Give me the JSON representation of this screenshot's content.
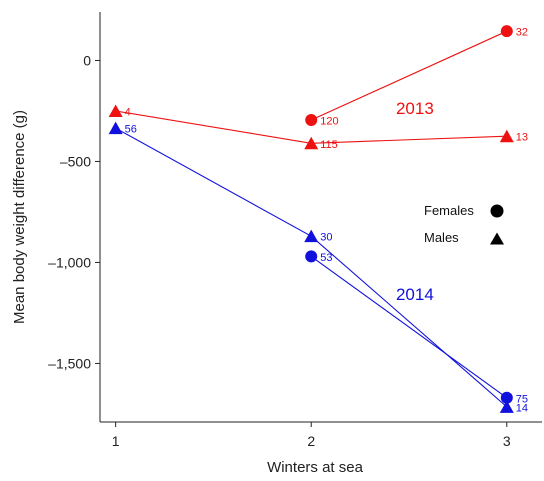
{
  "chart_data": {
    "type": "line",
    "xlabel": "Winters at sea",
    "ylabel": "Mean body weight difference (g)",
    "x_ticks": [
      1,
      2,
      3
    ],
    "x_tick_labels": [
      "1",
      "2",
      "3"
    ],
    "y_ticks": [
      0,
      -500,
      -1000,
      -1500
    ],
    "y_tick_labels": [
      "0",
      "–500",
      "–1,000",
      "–1,500"
    ],
    "xlim": [
      0.92,
      3.18
    ],
    "ylim": [
      -1790,
      240
    ],
    "group_labels": [
      {
        "text": "2013",
        "x": 2.53,
        "y": -265,
        "color": "#ee1111"
      },
      {
        "text": "2014",
        "x": 2.53,
        "y": -1185,
        "color": "#1111dd"
      }
    ],
    "legend": {
      "position": "right",
      "entries": [
        {
          "label": "Females",
          "marker": "circle"
        },
        {
          "label": "Males",
          "marker": "triangle"
        }
      ]
    },
    "series": [
      {
        "year": "2013",
        "sex": "Males",
        "marker": "triangle",
        "color": "#ee1111",
        "points": [
          {
            "x": 1,
            "y": -250,
            "n": "4"
          },
          {
            "x": 2,
            "y": -410,
            "n": "115"
          },
          {
            "x": 3,
            "y": -375,
            "n": "13"
          }
        ]
      },
      {
        "year": "2013",
        "sex": "Females",
        "marker": "circle",
        "color": "#ee1111",
        "points": [
          {
            "x": 2,
            "y": -295,
            "n": "120"
          },
          {
            "x": 3,
            "y": 145,
            "n": "32"
          }
        ]
      },
      {
        "year": "2014",
        "sex": "Males",
        "marker": "triangle",
        "color": "#1111dd",
        "points": [
          {
            "x": 1,
            "y": -335,
            "n": "56"
          },
          {
            "x": 2,
            "y": -870,
            "n": "30"
          },
          {
            "x": 3,
            "y": -1715,
            "n": "14"
          }
        ]
      },
      {
        "year": "2014",
        "sex": "Females",
        "marker": "circle",
        "color": "#1111dd",
        "points": [
          {
            "x": 2,
            "y": -970,
            "n": "53"
          },
          {
            "x": 3,
            "y": -1670,
            "n": "75"
          }
        ]
      }
    ]
  }
}
